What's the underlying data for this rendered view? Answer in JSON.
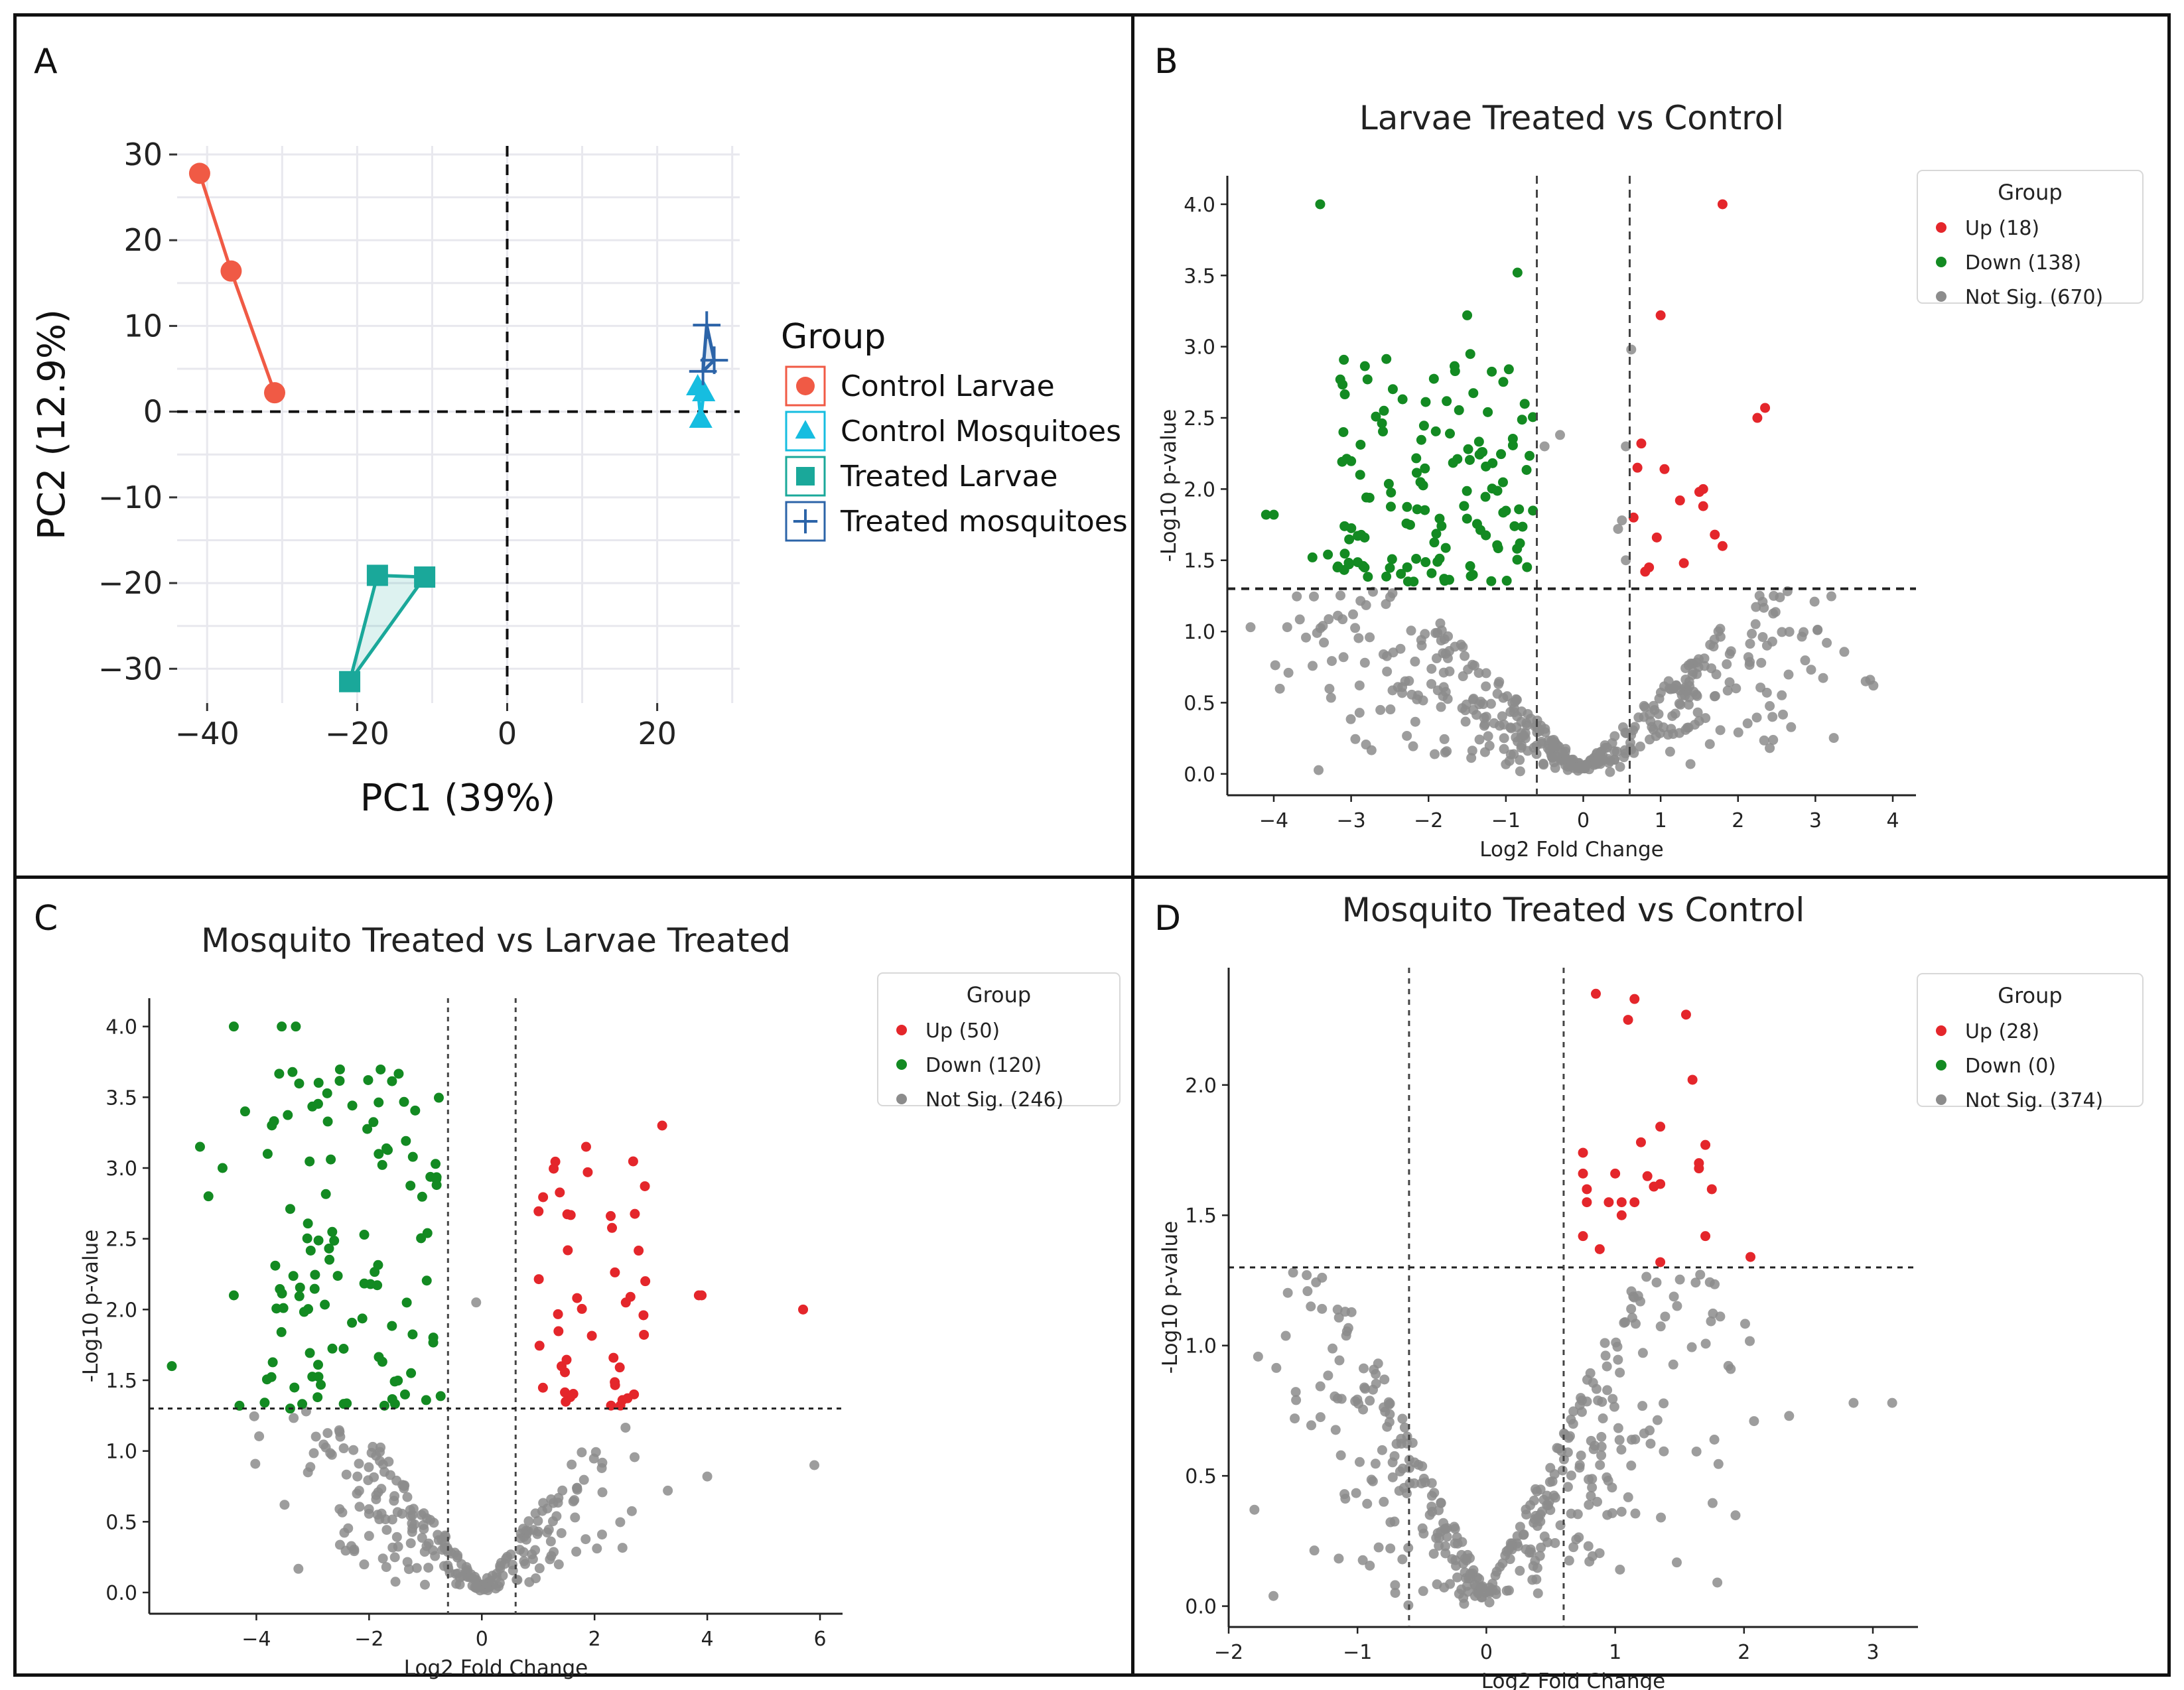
{
  "panels": {
    "A": {
      "label": "A"
    },
    "B": {
      "label": "B"
    },
    "C": {
      "label": "C"
    },
    "D": {
      "label": "D"
    }
  },
  "chart_data": [
    {
      "panel": "A",
      "type": "scatter",
      "title": "",
      "xlabel": "PC1 (39%)",
      "ylabel": "PC2 (12.9%)",
      "xlim": [
        -44,
        31
      ],
      "ylim": [
        -34,
        31
      ],
      "xticks": [
        -40,
        -20,
        0,
        20
      ],
      "yticks": [
        -30,
        -20,
        -10,
        0,
        10,
        20,
        30
      ],
      "xtick_labels": [
        "−40",
        "−20",
        "0",
        "20"
      ],
      "ytick_labels": [
        "−30",
        "−20",
        "−10",
        "0",
        "10",
        "20",
        "30"
      ],
      "grid": true,
      "reference_lines": {
        "x": 0,
        "y": 0
      },
      "legend": {
        "title": "Group",
        "position": "right"
      },
      "series": [
        {
          "name": "Control Larvae",
          "marker": "circle",
          "color": "#f05a45",
          "points": [
            [
              -41,
              27.8
            ],
            [
              -36.8,
              16.4
            ],
            [
              -31,
              2.2
            ]
          ]
        },
        {
          "name": "Control Mosquitoes",
          "marker": "triangle",
          "color": "#16bde0",
          "points": [
            [
              25.4,
              2.9
            ],
            [
              25.8,
              -0.9
            ],
            [
              26.2,
              2.2
            ]
          ]
        },
        {
          "name": "Treated Larvae",
          "marker": "square",
          "color": "#1aa89a",
          "points": [
            [
              -21,
              -31.5
            ],
            [
              -17.3,
              -19.1
            ],
            [
              -11,
              -19.3
            ]
          ]
        },
        {
          "name": "Treated mosquitoes",
          "marker": "plus",
          "color": "#2c64a8",
          "points": [
            [
              26.6,
              10.1
            ],
            [
              26.1,
              4.7
            ],
            [
              27.6,
              6
            ]
          ]
        }
      ]
    },
    {
      "panel": "B",
      "type": "scatter",
      "title": "Larvae Treated vs Control",
      "xlabel": "Log2 Fold Change",
      "ylabel": "-Log10 p-value",
      "xlim": [
        -4.6,
        4.3
      ],
      "ylim": [
        -0.15,
        4.2
      ],
      "xticks": [
        -4,
        -3,
        -2,
        -1,
        0,
        1,
        2,
        3,
        4
      ],
      "yticks": [
        0,
        0.5,
        1,
        1.5,
        2,
        2.5,
        3,
        3.5,
        4
      ],
      "xtick_labels": [
        "−4",
        "−3",
        "−2",
        "−1",
        "0",
        "1",
        "2",
        "3",
        "4"
      ],
      "ytick_labels": [
        "0.0",
        "0.5",
        "1.0",
        "1.5",
        "2.0",
        "2.5",
        "3.0",
        "3.5",
        "4.0"
      ],
      "vlines": [
        -0.6,
        0.6
      ],
      "hline": 1.3,
      "legend": {
        "title": "Group",
        "position": "top-right",
        "entries": [
          {
            "label": "Up (18)",
            "color": "#e4262b"
          },
          {
            "label": "Down (138)",
            "color": "#138a22"
          },
          {
            "label": "Not Sig. (670)",
            "color": "#8c8c8c"
          }
        ]
      },
      "counts": {
        "up": 18,
        "down": 138,
        "notsig": 670
      },
      "up_points": [
        [
          1.8,
          4.0
        ],
        [
          1.0,
          3.22
        ],
        [
          2.35,
          2.57
        ],
        [
          2.25,
          2.5
        ],
        [
          0.75,
          2.32
        ],
        [
          1.05,
          2.14
        ],
        [
          1.55,
          2.0
        ],
        [
          1.5,
          1.98
        ],
        [
          1.25,
          1.92
        ],
        [
          1.55,
          1.88
        ],
        [
          0.65,
          1.8
        ],
        [
          1.7,
          1.68
        ],
        [
          0.95,
          1.66
        ],
        [
          1.8,
          1.6
        ],
        [
          0.85,
          1.45
        ],
        [
          0.8,
          1.42
        ],
        [
          1.3,
          1.48
        ],
        [
          0.7,
          2.15
        ]
      ],
      "down_key_points": [
        [
          -3.4,
          4.0
        ],
        [
          -0.85,
          3.52
        ],
        [
          -1.5,
          3.22
        ],
        [
          -4.1,
          1.82
        ],
        [
          -4.0,
          1.82
        ],
        [
          -3.5,
          1.52
        ],
        [
          -3.3,
          1.54
        ],
        [
          -3.1,
          2.4
        ]
      ],
      "down_region": {
        "x": [
          -3.2,
          -0.65
        ],
        "y": [
          1.35,
          2.95
        ]
      },
      "notsig_region": {
        "x": [
          -4.3,
          3.8
        ],
        "y": [
          0,
          1.29
        ]
      },
      "notsig_outliers": [
        [
          3.65,
          0.65
        ],
        [
          3.75,
          0.62
        ],
        [
          -4.3,
          1.03
        ],
        [
          2.3,
          0.78
        ],
        [
          0.62,
          2.98
        ],
        [
          0.55,
          2.3
        ],
        [
          0.45,
          1.72
        ],
        [
          0.5,
          1.78
        ],
        [
          0.55,
          1.5
        ],
        [
          -0.3,
          2.38
        ],
        [
          -0.5,
          2.3
        ]
      ]
    },
    {
      "panel": "C",
      "type": "scatter",
      "title": "Mosquito Treated vs Larvae Treated",
      "xlabel": "Log2 Fold Change",
      "ylabel": "-Log10 p-value",
      "xlim": [
        -5.9,
        6.4
      ],
      "ylim": [
        -0.15,
        4.2
      ],
      "xticks": [
        -4,
        -2,
        0,
        2,
        4,
        6
      ],
      "yticks": [
        0,
        0.5,
        1,
        1.5,
        2,
        2.5,
        3,
        3.5,
        4
      ],
      "xtick_labels": [
        "−4",
        "−2",
        "0",
        "2",
        "4",
        "6"
      ],
      "ytick_labels": [
        "0.0",
        "0.5",
        "1.0",
        "1.5",
        "2.0",
        "2.5",
        "3.0",
        "3.5",
        "4.0"
      ],
      "vlines": [
        -0.6,
        0.6
      ],
      "hline": 1.3,
      "legend": {
        "title": "Group",
        "position": "top-right",
        "entries": [
          {
            "label": "Up (50)",
            "color": "#e4262b"
          },
          {
            "label": "Down (120)",
            "color": "#138a22"
          },
          {
            "label": "Not Sig. (246)",
            "color": "#8c8c8c"
          }
        ]
      },
      "counts": {
        "up": 50,
        "down": 120,
        "notsig": 246
      },
      "up_key_points": [
        [
          3.2,
          3.3
        ],
        [
          1.85,
          3.15
        ],
        [
          5.7,
          2.0
        ],
        [
          3.85,
          2.1
        ],
        [
          3.9,
          2.1
        ],
        [
          2.9,
          2.2
        ],
        [
          2.7,
          1.4
        ]
      ],
      "up_region": {
        "x": [
          1.0,
          2.9
        ],
        "y": [
          1.32,
          3.05
        ]
      },
      "down_key_points": [
        [
          -4.4,
          4.0
        ],
        [
          -3.55,
          4.0
        ],
        [
          -3.3,
          4.0
        ],
        [
          -5.5,
          1.6
        ],
        [
          -5.0,
          3.15
        ],
        [
          -4.85,
          2.8
        ],
        [
          -4.6,
          3.0
        ],
        [
          -4.2,
          3.4
        ],
        [
          -3.8,
          3.1
        ],
        [
          -4.4,
          2.1
        ],
        [
          -4.3,
          1.32
        ],
        [
          -3.4,
          1.3
        ]
      ],
      "down_region": {
        "x": [
          -3.9,
          -0.7
        ],
        "y": [
          1.32,
          3.7
        ]
      },
      "notsig_region": {
        "x": [
          -4.2,
          3.0
        ],
        "y": [
          0,
          1.29
        ]
      },
      "notsig_outliers": [
        [
          5.9,
          0.9
        ],
        [
          4.0,
          0.82
        ],
        [
          3.3,
          0.72
        ],
        [
          -3.5,
          0.62
        ],
        [
          -2.0,
          0.4
        ],
        [
          -0.1,
          2.05
        ]
      ]
    },
    {
      "panel": "D",
      "type": "scatter",
      "title": "Mosquito Treated vs Control",
      "xlabel": "Log2 Fold Change",
      "ylabel": "-Log10 p-value",
      "xlim": [
        -2.0,
        3.35
      ],
      "ylim": [
        -0.08,
        2.45
      ],
      "xticks": [
        -2,
        -1,
        0,
        1,
        2,
        3
      ],
      "yticks": [
        0,
        0.5,
        1,
        1.5,
        2
      ],
      "xtick_labels": [
        "−2",
        "−1",
        "0",
        "1",
        "2",
        "3"
      ],
      "ytick_labels": [
        "0.0",
        "0.5",
        "1.0",
        "1.5",
        "2.0"
      ],
      "vlines": [
        -0.6,
        0.6
      ],
      "hline": 1.3,
      "legend": {
        "title": "Group",
        "position": "top-right",
        "entries": [
          {
            "label": "Up (28)",
            "color": "#e4262b"
          },
          {
            "label": "Down (0)",
            "color": "#138a22"
          },
          {
            "label": "Not Sig. (374)",
            "color": "#8c8c8c"
          }
        ]
      },
      "counts": {
        "up": 28,
        "down": 0,
        "notsig": 374
      },
      "up_points": [
        [
          0.85,
          2.35
        ],
        [
          1.15,
          2.33
        ],
        [
          1.1,
          2.25
        ],
        [
          1.55,
          2.27
        ],
        [
          1.6,
          2.02
        ],
        [
          1.35,
          1.84
        ],
        [
          1.2,
          1.78
        ],
        [
          0.75,
          1.74
        ],
        [
          1.7,
          1.77
        ],
        [
          1.65,
          1.7
        ],
        [
          1.65,
          1.68
        ],
        [
          1.25,
          1.65
        ],
        [
          1.35,
          1.62
        ],
        [
          1.0,
          1.66
        ],
        [
          0.75,
          1.66
        ],
        [
          0.78,
          1.6
        ],
        [
          1.75,
          1.6
        ],
        [
          0.95,
          1.55
        ],
        [
          1.05,
          1.55
        ],
        [
          1.15,
          1.55
        ],
        [
          1.3,
          1.61
        ],
        [
          0.78,
          1.55
        ],
        [
          1.05,
          1.5
        ],
        [
          0.75,
          1.42
        ],
        [
          0.88,
          1.37
        ],
        [
          1.35,
          1.32
        ],
        [
          1.7,
          1.42
        ],
        [
          2.05,
          1.34
        ]
      ],
      "notsig_region": {
        "x": [
          -1.9,
          2.3
        ],
        "y": [
          0,
          1.28
        ]
      },
      "notsig_outliers": [
        [
          3.15,
          0.78
        ],
        [
          2.85,
          0.78
        ],
        [
          2.35,
          0.73
        ],
        [
          -1.5,
          1.28
        ],
        [
          -1.8,
          0.37
        ]
      ]
    }
  ]
}
